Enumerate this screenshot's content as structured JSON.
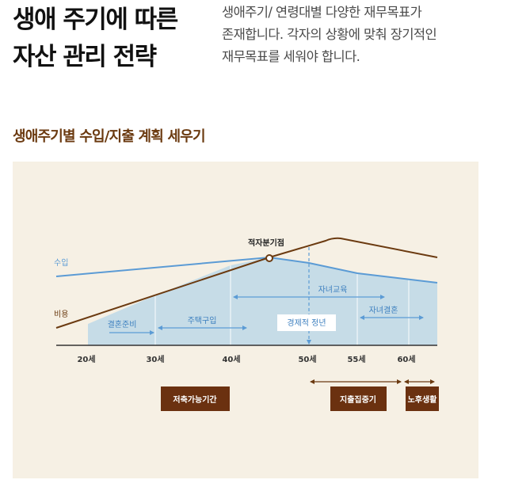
{
  "header": {
    "title_lines": [
      "생애 주기에 따른",
      "자산 관리 전략"
    ],
    "description_lines": [
      "생애주기/ 연령대별 다양한 재무목표가",
      "존재합니다. 각자의 상황에 맞춰 장기적인",
      "재무목표를 세워야 합니다."
    ]
  },
  "section_title": "생애주기별 수입/지출 계획 세우기",
  "diagram": {
    "colors": {
      "background": "#f6f0e4",
      "income": "#5b9bd5",
      "expense": "#6b3a10",
      "area_fill": "#c6dce7",
      "area_label": "#3c7fbf",
      "badge": "#6b3110"
    },
    "income_label": "수입",
    "expense_label": "비용",
    "crossover_label": "적자분기점",
    "retirement_label": "경제적 정년",
    "spans": {
      "marriage_prep": "결혼준비",
      "home_purchase": "주택구입",
      "children_education": "자녀교육",
      "children_marriage": "자녀결혼"
    },
    "age_ticks": [
      "20세",
      "30세",
      "40세",
      "50세",
      "55세",
      "60세"
    ],
    "phases": {
      "saving": "저축가능기간",
      "spending": "지출집중기",
      "retirement": "노후생활"
    }
  }
}
